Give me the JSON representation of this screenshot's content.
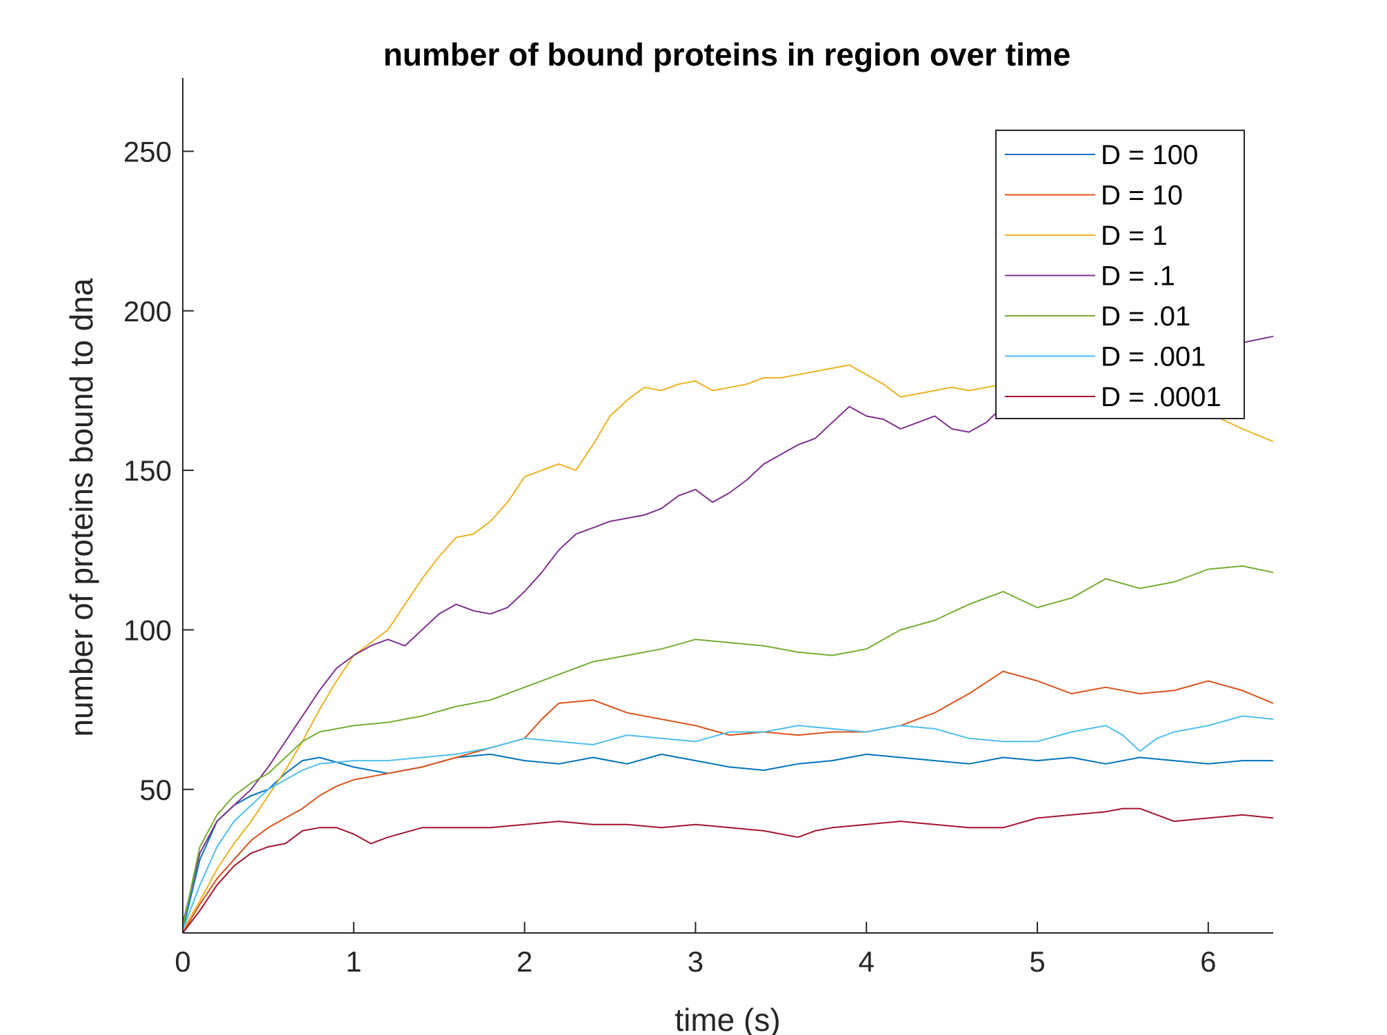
{
  "chart_data": {
    "type": "line",
    "title": "number of bound proteins in region over time",
    "xlabel": "time (s)",
    "ylabel": "number of proteins bound to dna",
    "xlim": [
      0,
      6.38
    ],
    "ylim": [
      5,
      273
    ],
    "xticks": [
      0,
      1,
      2,
      3,
      4,
      5,
      6
    ],
    "xtick_labels": [
      "0",
      "1",
      "2",
      "3",
      "4",
      "5",
      "6"
    ],
    "yticks": [
      50,
      100,
      150,
      200,
      250
    ],
    "ytick_labels": [
      "50",
      "100",
      "150",
      "200",
      "250"
    ],
    "grid": false,
    "legend_position": "top-right",
    "series": [
      {
        "name": "D = 100",
        "color": "#0072BD",
        "x": [
          0,
          0.1,
          0.2,
          0.3,
          0.4,
          0.5,
          0.6,
          0.7,
          0.8,
          1.0,
          1.2,
          1.4,
          1.6,
          1.8,
          2.0,
          2.2,
          2.4,
          2.6,
          2.8,
          3.0,
          3.2,
          3.4,
          3.6,
          3.8,
          4.0,
          4.2,
          4.4,
          4.6,
          4.8,
          5.0,
          5.2,
          5.4,
          5.6,
          5.8,
          6.0,
          6.2,
          6.38
        ],
        "values": [
          6,
          28,
          40,
          45,
          48,
          50,
          55,
          59,
          60,
          57,
          55,
          57,
          60,
          61,
          59,
          58,
          60,
          58,
          61,
          59,
          57,
          56,
          58,
          59,
          61,
          60,
          59,
          58,
          60,
          59,
          60,
          58,
          60,
          59,
          58,
          59,
          59
        ]
      },
      {
        "name": "D = 10",
        "color": "#D95319",
        "x": [
          0,
          0.1,
          0.2,
          0.3,
          0.4,
          0.5,
          0.6,
          0.7,
          0.8,
          0.9,
          1.0,
          1.2,
          1.4,
          1.6,
          1.8,
          2.0,
          2.1,
          2.2,
          2.4,
          2.6,
          2.8,
          3.0,
          3.2,
          3.4,
          3.6,
          3.8,
          4.0,
          4.2,
          4.4,
          4.6,
          4.8,
          5.0,
          5.2,
          5.4,
          5.6,
          5.8,
          6.0,
          6.2,
          6.38
        ],
        "values": [
          5,
          14,
          22,
          28,
          34,
          38,
          41,
          44,
          48,
          51,
          53,
          55,
          57,
          60,
          63,
          66,
          72,
          77,
          78,
          74,
          72,
          70,
          67,
          68,
          67,
          68,
          68,
          70,
          74,
          80,
          87,
          84,
          80,
          82,
          80,
          81,
          84,
          81,
          77
        ]
      },
      {
        "name": "D = 1",
        "color": "#EDB120",
        "x": [
          0,
          0.1,
          0.2,
          0.3,
          0.4,
          0.5,
          0.6,
          0.7,
          0.8,
          0.9,
          1.0,
          1.1,
          1.2,
          1.3,
          1.4,
          1.5,
          1.6,
          1.7,
          1.8,
          1.9,
          2.0,
          2.1,
          2.2,
          2.3,
          2.4,
          2.5,
          2.6,
          2.7,
          2.8,
          2.9,
          3.0,
          3.1,
          3.2,
          3.3,
          3.4,
          3.5,
          3.6,
          3.7,
          3.8,
          3.9,
          4.0,
          4.1,
          4.2,
          4.3,
          4.4,
          4.5,
          4.6,
          4.7,
          4.8,
          5.0,
          5.2,
          5.4,
          5.6,
          5.8,
          6.0,
          6.2,
          6.38
        ],
        "values": [
          6,
          15,
          25,
          33,
          40,
          48,
          56,
          65,
          75,
          84,
          92,
          96,
          100,
          108,
          116,
          123,
          129,
          130,
          134,
          140,
          148,
          150,
          152,
          150,
          158,
          167,
          172,
          176,
          175,
          177,
          178,
          175,
          176,
          177,
          179,
          179,
          180,
          181,
          182,
          183,
          180,
          177,
          173,
          174,
          175,
          176,
          175,
          176,
          177,
          176,
          174,
          172,
          171,
          170,
          168,
          163,
          159
        ]
      },
      {
        "name": "D = .1",
        "color": "#7E2F8E",
        "x": [
          0,
          0.1,
          0.2,
          0.3,
          0.4,
          0.5,
          0.6,
          0.7,
          0.8,
          0.9,
          1.0,
          1.1,
          1.2,
          1.3,
          1.4,
          1.5,
          1.6,
          1.7,
          1.8,
          1.9,
          2.0,
          2.1,
          2.2,
          2.3,
          2.4,
          2.5,
          2.6,
          2.7,
          2.8,
          2.9,
          3.0,
          3.1,
          3.2,
          3.3,
          3.4,
          3.5,
          3.6,
          3.7,
          3.8,
          3.9,
          4.0,
          4.1,
          4.2,
          4.3,
          4.4,
          4.5,
          4.6,
          4.7,
          4.8,
          5.0,
          5.2,
          5.4,
          5.6,
          5.8,
          6.0,
          6.2,
          6.38
        ],
        "values": [
          8,
          30,
          40,
          45,
          50,
          57,
          65,
          73,
          81,
          88,
          92,
          95,
          97,
          95,
          100,
          105,
          108,
          106,
          105,
          107,
          112,
          118,
          125,
          130,
          132,
          134,
          135,
          136,
          138,
          142,
          144,
          140,
          143,
          147,
          152,
          155,
          158,
          160,
          165,
          170,
          167,
          166,
          163,
          165,
          167,
          163,
          162,
          165,
          170,
          172,
          175,
          178,
          182,
          185,
          188,
          190,
          192
        ]
      },
      {
        "name": "D = .01",
        "color": "#77AC30",
        "x": [
          0,
          0.1,
          0.2,
          0.3,
          0.4,
          0.5,
          0.6,
          0.7,
          0.8,
          1.0,
          1.2,
          1.4,
          1.6,
          1.8,
          2.0,
          2.2,
          2.4,
          2.6,
          2.8,
          3.0,
          3.2,
          3.4,
          3.6,
          3.8,
          4.0,
          4.2,
          4.4,
          4.6,
          4.8,
          5.0,
          5.2,
          5.4,
          5.6,
          5.8,
          6.0,
          6.2,
          6.38
        ],
        "values": [
          7,
          32,
          42,
          48,
          52,
          55,
          60,
          65,
          68,
          70,
          71,
          73,
          76,
          78,
          82,
          86,
          90,
          92,
          94,
          97,
          96,
          95,
          93,
          92,
          94,
          100,
          103,
          108,
          112,
          107,
          110,
          116,
          113,
          115,
          119,
          120,
          118
        ]
      },
      {
        "name": "D = .001",
        "color": "#4DBEEE",
        "x": [
          0,
          0.1,
          0.2,
          0.3,
          0.4,
          0.5,
          0.6,
          0.7,
          0.8,
          1.0,
          1.2,
          1.4,
          1.6,
          1.8,
          2.0,
          2.2,
          2.4,
          2.6,
          2.8,
          3.0,
          3.2,
          3.4,
          3.6,
          3.8,
          4.0,
          4.2,
          4.4,
          4.6,
          4.8,
          5.0,
          5.2,
          5.4,
          5.5,
          5.6,
          5.7,
          5.8,
          6.0,
          6.2,
          6.38
        ],
        "values": [
          6,
          20,
          32,
          40,
          45,
          50,
          53,
          56,
          58,
          59,
          59,
          60,
          61,
          63,
          66,
          65,
          64,
          67,
          66,
          65,
          68,
          68,
          70,
          69,
          68,
          70,
          69,
          66,
          65,
          65,
          68,
          70,
          67,
          62,
          66,
          68,
          70,
          73,
          72
        ]
      },
      {
        "name": "D = .0001",
        "color": "#A2142F",
        "x": [
          0,
          0.1,
          0.2,
          0.3,
          0.4,
          0.5,
          0.6,
          0.7,
          0.8,
          0.9,
          1.0,
          1.1,
          1.2,
          1.4,
          1.6,
          1.8,
          2.0,
          2.2,
          2.4,
          2.6,
          2.8,
          3.0,
          3.2,
          3.4,
          3.6,
          3.7,
          3.8,
          4.0,
          4.2,
          4.4,
          4.6,
          4.8,
          5.0,
          5.2,
          5.4,
          5.5,
          5.6,
          5.7,
          5.8,
          6.0,
          6.2,
          6.38
        ],
        "values": [
          5,
          12,
          20,
          26,
          30,
          32,
          33,
          37,
          38,
          38,
          36,
          33,
          35,
          38,
          38,
          38,
          39,
          40,
          39,
          39,
          38,
          39,
          38,
          37,
          35,
          37,
          38,
          39,
          40,
          39,
          38,
          38,
          41,
          42,
          43,
          44,
          44,
          42,
          40,
          41,
          42,
          41
        ]
      }
    ]
  }
}
